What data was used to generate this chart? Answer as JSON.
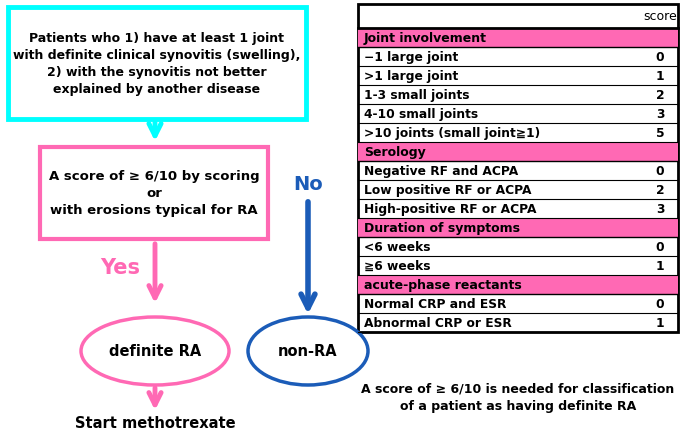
{
  "left_box_text": "Patients who 1) have at least 1 joint\nwith definite clinical synovitis (swelling),\n2) with the synovitis not better\nexplained by another disease",
  "middle_box_text": "A score of ≥ 6/10 by scoring\nor\nwith erosions typical for RA",
  "yes_label": "Yes",
  "no_label": "No",
  "definite_ra_text": "definite RA",
  "non_ra_text": "non-RA",
  "start_text": "Start methotrexate",
  "table_header": "score",
  "table_sections": [
    {
      "header": "Joint involvement",
      "rows": [
        [
          "−1 large joint",
          "0"
        ],
        [
          ">1 large joint",
          "1"
        ],
        [
          "1-3 small joints",
          "2"
        ],
        [
          "4-10 small joints",
          "3"
        ],
        [
          ">10 joints (small joint≧1)",
          "5"
        ]
      ]
    },
    {
      "header": "Serology",
      "rows": [
        [
          "Negative RF and ACPA",
          "0"
        ],
        [
          "Low positive RF or ACPA",
          "2"
        ],
        [
          "High-positive RF or ACPA",
          "3"
        ]
      ]
    },
    {
      "header": "Duration of symptoms",
      "rows": [
        [
          "<6 weeks",
          "0"
        ],
        [
          "≧6 weeks",
          "1"
        ]
      ]
    },
    {
      "header": "acute-phase reactants",
      "rows": [
        [
          "Normal CRP and ESR",
          "0"
        ],
        [
          "Abnormal CRP or ESR",
          "1"
        ]
      ]
    }
  ],
  "footer_text": "A score of ≥ 6/10 is needed for classification\nof a patient as having definite RA",
  "cyan_color": "#00FFFF",
  "pink_color": "#FF69B4",
  "blue_color": "#1B5CB8",
  "header_bg": "#FF69B4",
  "bg_color": "#FFFFFF",
  "figw": 6.85,
  "figh": 4.35,
  "dpi": 100
}
